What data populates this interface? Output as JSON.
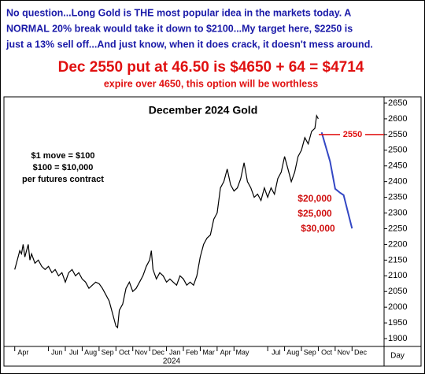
{
  "chart_data": {
    "type": "line",
    "header": [
      "No question...Long Gold is THE most popular idea in the markets today. A",
      "NORMAL 20% break would take it down to $2100...My target here, $2250 is",
      "just a 13% sell off...And just know, when it does crack, it doesn't mess around."
    ],
    "headline": "Dec 2550 put at 46.50 is $4650 + 64 = $4714",
    "subheadline": "expire over 4650, this option will be worthless",
    "title": "December 2024 Gold",
    "notes": [
      "$1 move = $100",
      "$100 = $10,000",
      "per futures contract"
    ],
    "losses": [
      "$20,000",
      "$25,000",
      "$30,000"
    ],
    "reference_line": 2550,
    "x_sublabel": "2024",
    "x_unit": "Day",
    "xlim": [
      -0.5,
      21.9
    ],
    "xticks": [
      {
        "value": 0.5,
        "label": "Apr"
      },
      {
        "value": 2.5,
        "label": "Jun"
      },
      {
        "value": 3.5,
        "label": "Jul"
      },
      {
        "value": 4.5,
        "label": "Aug"
      },
      {
        "value": 5.5,
        "label": "Sep"
      },
      {
        "value": 6.5,
        "label": "Oct"
      },
      {
        "value": 7.5,
        "label": "Nov"
      },
      {
        "value": 8.5,
        "label": "Dec"
      },
      {
        "value": 9.5,
        "label": "Jan"
      },
      {
        "value": 10.5,
        "label": "Feb"
      },
      {
        "value": 11.5,
        "label": "Mar"
      },
      {
        "value": 12.5,
        "label": "Apr"
      },
      {
        "value": 13.5,
        "label": "May"
      },
      {
        "value": 15.5,
        "label": "Jul"
      },
      {
        "value": 16.5,
        "label": "Aug"
      },
      {
        "value": 17.5,
        "label": "Sep"
      },
      {
        "value": 18.5,
        "label": "Oct"
      },
      {
        "value": 19.5,
        "label": "Nov"
      },
      {
        "value": 20.5,
        "label": "Dec"
      }
    ],
    "ylim": [
      1875,
      2665
    ],
    "yticks": [
      1900,
      1950,
      2000,
      2050,
      2100,
      2150,
      2200,
      2250,
      2300,
      2350,
      2400,
      2450,
      2500,
      2550,
      2600,
      2650
    ],
    "series": [
      {
        "color": "#000000",
        "x": [
          0,
          0.1,
          0.2,
          0.3,
          0.4,
          0.5,
          0.6,
          0.7,
          0.8,
          0.9,
          1.0,
          1.2,
          1.4,
          1.6,
          1.8,
          2.0,
          2.2,
          2.4,
          2.6,
          2.8,
          3.0,
          3.2,
          3.4,
          3.6,
          3.8,
          4.0,
          4.2,
          4.4,
          4.6,
          4.8,
          5.0,
          5.2,
          5.4,
          5.6,
          5.8,
          6.0,
          6.1,
          6.2,
          6.4,
          6.6,
          6.8,
          7.0,
          7.2,
          7.4,
          7.6,
          7.8,
          8.0,
          8.1,
          8.2,
          8.4,
          8.6,
          8.8,
          9.0,
          9.2,
          9.4,
          9.6,
          9.8,
          10.0,
          10.2,
          10.4,
          10.6,
          10.8,
          11.0,
          11.2,
          11.4,
          11.6,
          11.8,
          12.0,
          12.2,
          12.4,
          12.6,
          12.8,
          13.0,
          13.2,
          13.4,
          13.6,
          13.8,
          14.0,
          14.2,
          14.4,
          14.6,
          14.8,
          15.0,
          15.2,
          15.4,
          15.6,
          15.8,
          16.0,
          16.2,
          16.4,
          16.6,
          16.8,
          17.0,
          17.2,
          17.4,
          17.6,
          17.8,
          17.9,
          18.0
        ],
        "values": [
          2120,
          2140,
          2160,
          2180,
          2170,
          2200,
          2160,
          2180,
          2200,
          2150,
          2170,
          2140,
          2150,
          2130,
          2120,
          2130,
          2110,
          2120,
          2100,
          2110,
          2080,
          2110,
          2120,
          2100,
          2110,
          2090,
          2080,
          2060,
          2070,
          2080,
          2075,
          2060,
          2040,
          2020,
          1980,
          1940,
          1935,
          1990,
          2010,
          2060,
          2080,
          2050,
          2060,
          2080,
          2100,
          2130,
          2150,
          2180,
          2120,
          2090,
          2110,
          2100,
          2080,
          2090,
          2080,
          2070,
          2100,
          2090,
          2070,
          2080,
          2070,
          2100,
          2160,
          2200,
          2220,
          2230,
          2280,
          2300,
          2380,
          2400,
          2440,
          2390,
          2370,
          2380,
          2410,
          2460,
          2400,
          2380,
          2350,
          2360,
          2340,
          2380,
          2350,
          2380,
          2360,
          2410,
          2430,
          2480,
          2440,
          2400,
          2430,
          2480,
          2500,
          2540,
          2520,
          2560,
          2570,
          2610,
          2600
        ]
      },
      {
        "color": "#3347c4",
        "x": [
          18.2,
          18.7,
          19.0,
          19.3,
          19.5,
          20.0
        ],
        "values": [
          2557,
          2464,
          2377,
          2364,
          2357,
          2251
        ]
      }
    ]
  }
}
